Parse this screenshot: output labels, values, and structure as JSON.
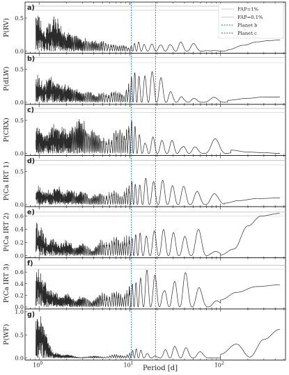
{
  "chart_data": {
    "type": "line",
    "subtype": "periodogram-stack",
    "xlabel": "Period [d]",
    "xscale": "log",
    "xlim": [
      0.7,
      520
    ],
    "xticks": [
      {
        "value": 1,
        "label": "10",
        "sup": "0"
      },
      {
        "value": 10,
        "label": "10",
        "sup": "1"
      },
      {
        "value": 100,
        "label": "10",
        "sup": "2"
      }
    ],
    "legend": {
      "position": "top-right",
      "entries": [
        {
          "label": "FAP=1%",
          "color": "#bbbbbb",
          "style": "solid"
        },
        {
          "label": "FAP=0.1%",
          "color": "#bbbbbb",
          "style": "solid"
        },
        {
          "label": "Planet b",
          "color": "#1f77b4",
          "style": "dashed"
        },
        {
          "label": "Planet c",
          "color": "#d62728",
          "style": "dashed"
        }
      ]
    },
    "planet_periods": {
      "b": 10.4,
      "c": 19.2
    },
    "panels": [
      {
        "tag": "a)",
        "ylabel": "P(RV)",
        "ymax": 0.7,
        "yticks": [
          "0.0",
          "0.5"
        ],
        "fap": [
          0.62,
          0.68
        ],
        "peaks": [
          [
            0.95,
            0.6
          ],
          [
            1.03,
            0.38
          ],
          [
            1.2,
            0.3
          ],
          [
            1.35,
            0.5
          ],
          [
            1.5,
            0.55
          ],
          [
            1.75,
            0.35
          ],
          [
            2.1,
            0.28
          ],
          [
            2.6,
            0.25
          ],
          [
            3.2,
            0.2
          ],
          [
            4.0,
            0.18
          ],
          [
            5.0,
            0.16
          ],
          [
            6.5,
            0.12
          ],
          [
            8.0,
            0.1
          ],
          [
            12.5,
            0.14
          ],
          [
            15.5,
            0.1
          ],
          [
            19,
            0.12
          ],
          [
            25,
            0.12
          ],
          [
            34,
            0.15
          ],
          [
            48,
            0.12
          ],
          [
            115,
            0.05
          ]
        ],
        "tail": [
          [
            120,
            0.02
          ],
          [
            180,
            0.09
          ],
          [
            250,
            0.14
          ],
          [
            350,
            0.16
          ],
          [
            450,
            0.17
          ]
        ]
      },
      {
        "tag": "b)",
        "ylabel": "P(dLW)",
        "ymax": 0.7,
        "yticks": [
          "0.0",
          "0.5"
        ],
        "fap": [
          0.6,
          0.68
        ],
        "peaks": [
          [
            0.95,
            0.42
          ],
          [
            1.05,
            0.35
          ],
          [
            1.3,
            0.4
          ],
          [
            1.6,
            0.32
          ],
          [
            2.0,
            0.28
          ],
          [
            2.5,
            0.22
          ],
          [
            3.5,
            0.18
          ],
          [
            5.0,
            0.16
          ],
          [
            7.0,
            0.2
          ],
          [
            11.5,
            0.45
          ],
          [
            13.8,
            0.3
          ],
          [
            16.5,
            0.5
          ],
          [
            19.5,
            0.48
          ],
          [
            24,
            0.25
          ],
          [
            32,
            0.12
          ],
          [
            45,
            0.08
          ],
          [
            95,
            0.1
          ]
        ],
        "tail": [
          [
            120,
            0.03
          ],
          [
            200,
            0.06
          ],
          [
            300,
            0.08
          ],
          [
            450,
            0.08
          ]
        ]
      },
      {
        "tag": "c)",
        "ylabel": "P(CRX)",
        "ymax": 0.7,
        "yticks": [
          "0.0",
          "0.5"
        ],
        "fap": [
          0.62,
          0.68
        ],
        "peaks": [
          [
            0.95,
            0.45
          ],
          [
            1.2,
            0.35
          ],
          [
            1.5,
            0.48
          ],
          [
            1.8,
            0.45
          ],
          [
            2.2,
            0.4
          ],
          [
            2.6,
            0.55
          ],
          [
            3.1,
            0.5
          ],
          [
            3.8,
            0.4
          ],
          [
            4.6,
            0.32
          ],
          [
            5.8,
            0.25
          ],
          [
            7.5,
            0.4
          ],
          [
            10.2,
            0.5
          ],
          [
            12.0,
            0.3
          ],
          [
            18,
            0.25
          ],
          [
            22,
            0.2
          ],
          [
            30,
            0.2
          ],
          [
            45,
            0.15
          ],
          [
            95,
            0.26
          ]
        ],
        "tail": [
          [
            130,
            0.05
          ],
          [
            200,
            0.02
          ],
          [
            300,
            0.01
          ],
          [
            450,
            0.0
          ]
        ]
      },
      {
        "tag": "d)",
        "ylabel": "P(Ca IRT 1)",
        "ymax": 0.7,
        "yticks": [
          "0.0",
          "0.5"
        ],
        "fap": [
          0.6,
          0.67
        ],
        "peaks": [
          [
            0.95,
            0.3
          ],
          [
            1.2,
            0.25
          ],
          [
            1.6,
            0.28
          ],
          [
            2.2,
            0.26
          ],
          [
            3.0,
            0.22
          ],
          [
            4.5,
            0.2
          ],
          [
            6.5,
            0.22
          ],
          [
            10.5,
            0.35
          ],
          [
            12.5,
            0.3
          ],
          [
            15,
            0.4
          ],
          [
            18,
            0.35
          ],
          [
            22,
            0.38
          ],
          [
            28,
            0.3
          ],
          [
            38,
            0.28
          ],
          [
            55,
            0.2
          ],
          [
            80,
            0.18
          ]
        ],
        "tail": [
          [
            110,
            0.02
          ],
          [
            160,
            0.06
          ],
          [
            250,
            0.09
          ],
          [
            450,
            0.1
          ]
        ]
      },
      {
        "tag": "e)",
        "ylabel": "P(Ca IRT 2)",
        "ymax": 0.7,
        "yticks": [
          "0.0",
          "0.2",
          "0.4",
          "0.6"
        ],
        "fap": [
          0.6,
          0.66
        ],
        "peaks": [
          [
            0.95,
            0.52
          ],
          [
            1.05,
            0.35
          ],
          [
            1.4,
            0.28
          ],
          [
            2.0,
            0.25
          ],
          [
            3.0,
            0.2
          ],
          [
            5.0,
            0.25
          ],
          [
            7.0,
            0.3
          ],
          [
            9.5,
            0.32
          ],
          [
            12.5,
            0.35
          ],
          [
            15.5,
            0.3
          ],
          [
            19,
            0.38
          ],
          [
            24,
            0.4
          ],
          [
            30,
            0.35
          ],
          [
            42,
            0.3
          ],
          [
            58,
            0.4
          ],
          [
            80,
            0.08
          ]
        ],
        "tail": [
          [
            100,
            0.01
          ],
          [
            140,
            0.1
          ],
          [
            200,
            0.45
          ],
          [
            280,
            0.6
          ],
          [
            450,
            0.64
          ]
        ]
      },
      {
        "tag": "f)",
        "ylabel": "P(Ca IRT 3)",
        "ymax": 0.8,
        "yticks": [
          "0.0",
          "0.2",
          "0.4",
          "0.6"
        ],
        "fap": [
          0.65,
          0.72
        ],
        "peaks": [
          [
            0.95,
            0.7
          ],
          [
            1.03,
            0.6
          ],
          [
            1.15,
            0.4
          ],
          [
            1.4,
            0.3
          ],
          [
            2.0,
            0.25
          ],
          [
            3.0,
            0.2
          ],
          [
            5.0,
            0.25
          ],
          [
            7.0,
            0.3
          ],
          [
            10.5,
            0.4
          ],
          [
            13,
            0.5
          ],
          [
            16,
            0.65
          ],
          [
            19,
            0.55
          ],
          [
            22,
            0.3
          ],
          [
            28,
            0.4
          ],
          [
            35,
            0.55
          ],
          [
            40,
            0.6
          ],
          [
            55,
            0.35
          ],
          [
            80,
            0.15
          ]
        ],
        "tail": [
          [
            100,
            0.12
          ],
          [
            150,
            0.25
          ],
          [
            250,
            0.35
          ],
          [
            450,
            0.38
          ]
        ]
      },
      {
        "tag": "g)",
        "ylabel": "P(WF)",
        "ymax": 1.0,
        "yticks": [
          "0.0",
          "0.5",
          "1.0"
        ],
        "fap": [],
        "peaks": [
          [
            1.0,
            0.95
          ],
          [
            1.5,
            0.12
          ],
          [
            2.0,
            0.08
          ],
          [
            4.0,
            0.05
          ],
          [
            7.0,
            0.08
          ],
          [
            12,
            0.2
          ],
          [
            15,
            0.1
          ],
          [
            29,
            0.28
          ],
          [
            37,
            0.28
          ],
          [
            55,
            0.15
          ]
        ],
        "tail": [
          [
            100,
            0.08
          ],
          [
            150,
            0.3
          ],
          [
            210,
            0.02
          ],
          [
            300,
            0.4
          ],
          [
            450,
            0.62
          ]
        ]
      }
    ]
  }
}
